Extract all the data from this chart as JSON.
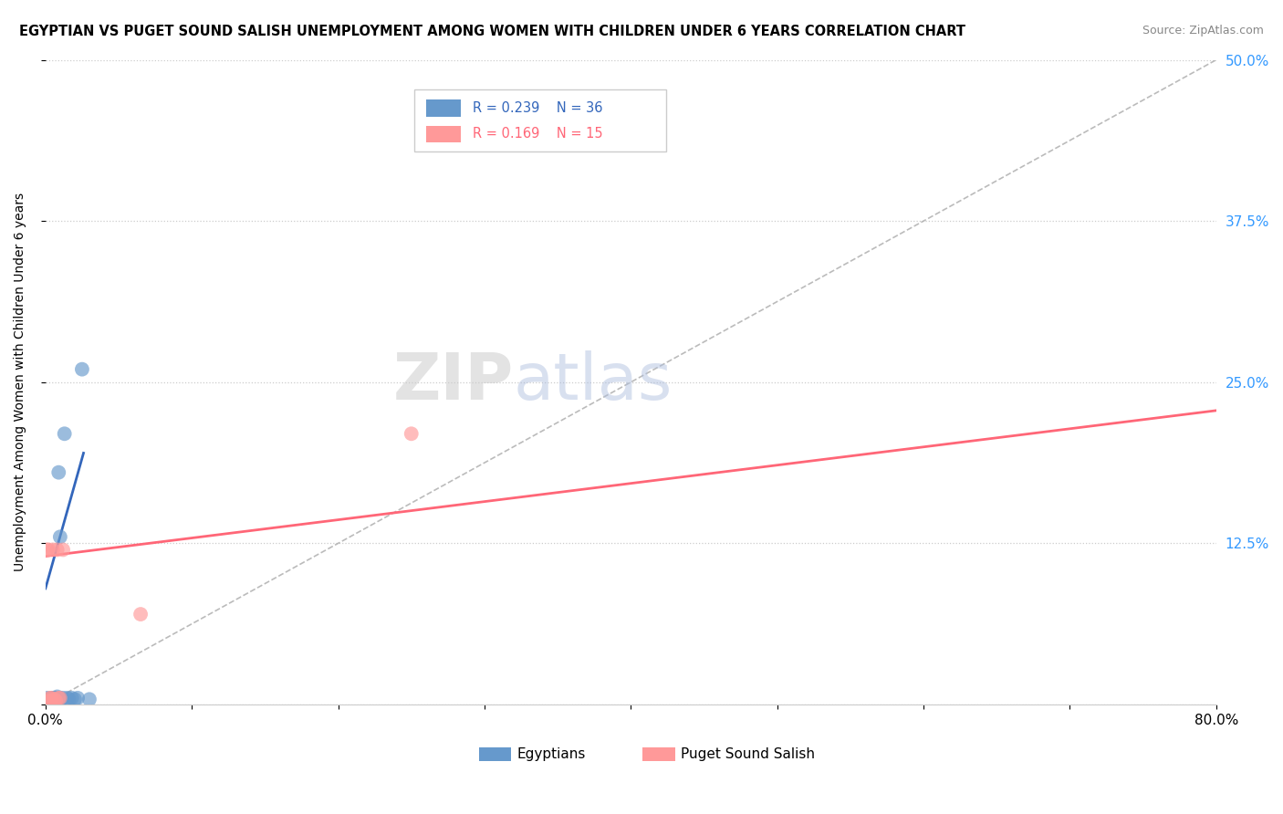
{
  "title": "EGYPTIAN VS PUGET SOUND SALISH UNEMPLOYMENT AMONG WOMEN WITH CHILDREN UNDER 6 YEARS CORRELATION CHART",
  "source": "Source: ZipAtlas.com",
  "ylabel": "Unemployment Among Women with Children Under 6 years",
  "xlim": [
    0.0,
    0.8
  ],
  "ylim": [
    0.0,
    0.5
  ],
  "xticks": [
    0.0,
    0.1,
    0.2,
    0.3,
    0.4,
    0.5,
    0.6,
    0.7,
    0.8
  ],
  "xticklabels": [
    "0.0%",
    "",
    "",
    "",
    "",
    "",
    "",
    "",
    "80.0%"
  ],
  "yticks": [
    0.0,
    0.125,
    0.25,
    0.375,
    0.5
  ],
  "yticklabels_right": [
    "",
    "12.5%",
    "25.0%",
    "37.5%",
    "50.0%"
  ],
  "blue_color": "#6699CC",
  "pink_color": "#FF9999",
  "blue_line_color": "#3366BB",
  "pink_line_color": "#FF6677",
  "diagonal_color": "#AAAAAA",
  "watermark_zip": "ZIP",
  "watermark_atlas": "atlas",
  "egyptians_x": [
    0.001,
    0.001,
    0.001,
    0.002,
    0.002,
    0.002,
    0.003,
    0.003,
    0.003,
    0.004,
    0.004,
    0.004,
    0.005,
    0.005,
    0.005,
    0.005,
    0.006,
    0.006,
    0.006,
    0.007,
    0.007,
    0.008,
    0.008,
    0.009,
    0.01,
    0.01,
    0.01,
    0.012,
    0.013,
    0.015,
    0.016,
    0.018,
    0.02,
    0.022,
    0.025,
    0.03
  ],
  "egyptians_y": [
    0.005,
    0.003,
    0.002,
    0.004,
    0.002,
    0.001,
    0.004,
    0.003,
    0.001,
    0.005,
    0.003,
    0.002,
    0.005,
    0.004,
    0.003,
    0.002,
    0.005,
    0.003,
    0.002,
    0.005,
    0.004,
    0.006,
    0.003,
    0.18,
    0.005,
    0.13,
    0.004,
    0.005,
    0.21,
    0.005,
    0.004,
    0.005,
    0.004,
    0.005,
    0.26,
    0.004
  ],
  "salish_x": [
    0.001,
    0.002,
    0.003,
    0.003,
    0.004,
    0.004,
    0.005,
    0.006,
    0.007,
    0.008,
    0.009,
    0.01,
    0.012,
    0.065,
    0.25
  ],
  "salish_y": [
    0.12,
    0.12,
    0.005,
    0.003,
    0.005,
    0.003,
    0.12,
    0.004,
    0.003,
    0.12,
    0.005,
    0.005,
    0.12,
    0.07,
    0.21
  ],
  "blue_trend_x0": 0.0,
  "blue_trend_y0": 0.09,
  "blue_trend_x1": 0.026,
  "blue_trend_y1": 0.195,
  "pink_trend_x0": 0.0,
  "pink_trend_y0": 0.115,
  "pink_trend_x1": 0.8,
  "pink_trend_y1": 0.228
}
